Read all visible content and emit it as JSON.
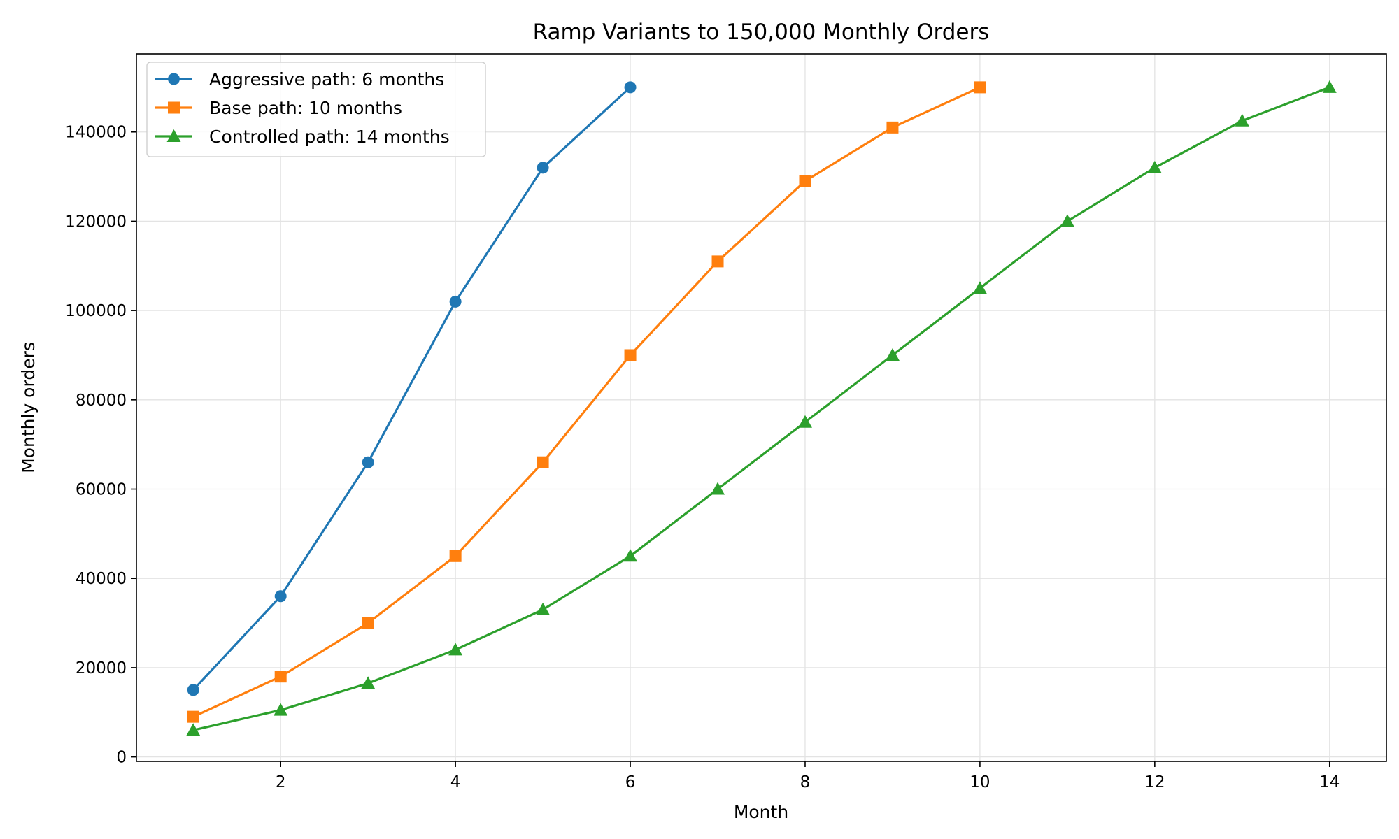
{
  "chart_data": {
    "type": "line",
    "title": "Ramp Variants to 150,000 Monthly Orders",
    "xlabel": "Month",
    "ylabel": "Monthly orders",
    "xlim": [
      0.35,
      14.65
    ],
    "ylim": [
      -1000,
      157500
    ],
    "xticks": [
      2,
      4,
      6,
      8,
      10,
      12,
      14
    ],
    "yticks": [
      0,
      20000,
      40000,
      60000,
      80000,
      100000,
      120000,
      140000
    ],
    "grid": true,
    "legend_position": "top-left",
    "series": [
      {
        "name": "Aggressive path: 6 months",
        "color": "#1f77b4",
        "marker": "circle",
        "x": [
          1,
          2,
          3,
          4,
          5,
          6
        ],
        "y": [
          15000,
          36000,
          66000,
          102000,
          132000,
          150000
        ]
      },
      {
        "name": "Base path: 10 months",
        "color": "#ff7f0e",
        "marker": "square",
        "x": [
          1,
          2,
          3,
          4,
          5,
          6,
          7,
          8,
          9,
          10
        ],
        "y": [
          9000,
          18000,
          30000,
          45000,
          66000,
          90000,
          111000,
          129000,
          141000,
          150000
        ]
      },
      {
        "name": "Controlled path: 14 months",
        "color": "#2ca02c",
        "marker": "triangle",
        "x": [
          1,
          2,
          3,
          4,
          5,
          6,
          7,
          8,
          9,
          10,
          11,
          12,
          13,
          14
        ],
        "y": [
          6000,
          10500,
          16500,
          24000,
          33000,
          45000,
          60000,
          75000,
          90000,
          105000,
          120000,
          132000,
          142500,
          150000
        ]
      }
    ]
  }
}
